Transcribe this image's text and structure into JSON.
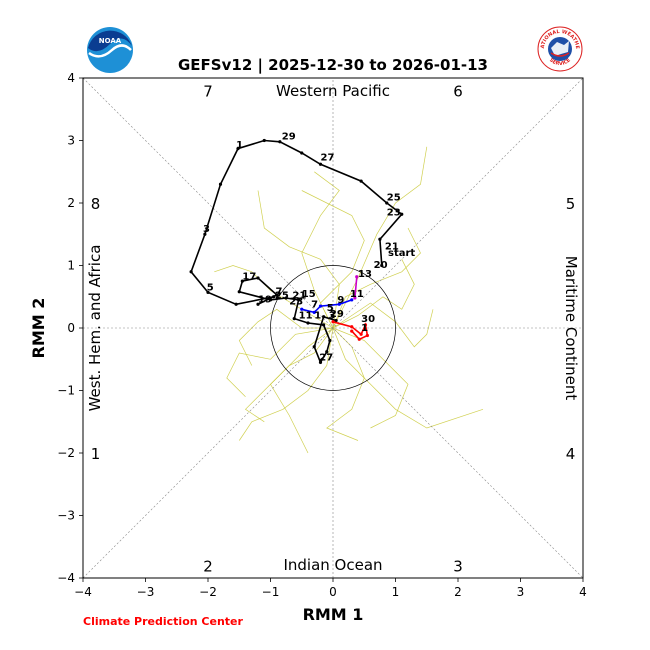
{
  "logos": {
    "noaa": "NOAA",
    "nws_top": "NATIONAL WEATHER",
    "nws_bottom": "SERVICE"
  },
  "credit": "Climate Prediction Center",
  "colors": {
    "obs_black": "#000000",
    "obs_purple": "#cc00cc",
    "obs_blue": "#0000ff",
    "obs_red": "#ff0000",
    "ensemble": "#c8c832",
    "credit_red": "#ff0000"
  },
  "chart_data": {
    "type": "line",
    "title": "GEFSv12 | 2025-12-30 to 2026-01-13",
    "xlabel": "RMM 1",
    "ylabel": "RMM 2",
    "xlim": [
      -4,
      4
    ],
    "ylim": [
      -4,
      4
    ],
    "xticks": [
      "−4",
      "−3",
      "−2",
      "−1",
      "0",
      "1",
      "2",
      "3",
      "4"
    ],
    "yticks": [
      "−4",
      "−3",
      "−2",
      "−1",
      "0",
      "1",
      "2",
      "3",
      "4"
    ],
    "phase_regions": [
      {
        "label": "Western Pacific",
        "side": "top"
      },
      {
        "label": "Indian Ocean",
        "side": "bottom"
      },
      {
        "label": "West. Hem. and Africa",
        "side": "left"
      },
      {
        "label": "Maritime Continent",
        "side": "right"
      }
    ],
    "phase_numbers": [
      {
        "label": "7",
        "x": -2.0,
        "y": 3.8
      },
      {
        "label": "6",
        "x": 2.0,
        "y": 3.8
      },
      {
        "label": "8",
        "x": -3.8,
        "y": 2.0
      },
      {
        "label": "5",
        "x": 3.8,
        "y": 2.0
      },
      {
        "label": "1",
        "x": -3.8,
        "y": -2.0
      },
      {
        "label": "4",
        "x": 3.8,
        "y": -2.0
      },
      {
        "label": "2",
        "x": -2.0,
        "y": -3.8
      },
      {
        "label": "3",
        "x": 2.0,
        "y": -3.8
      }
    ],
    "unit_circle_radius": 1,
    "start_label": {
      "text": "start",
      "x": 0.88,
      "y": 1.15
    },
    "observed_series": [
      {
        "name": "segment-a",
        "color": "#000000",
        "points": [
          [
            0.78,
            1.0
          ],
          [
            0.75,
            1.42
          ],
          [
            1.1,
            1.82
          ],
          [
            0.86,
            2.0
          ],
          [
            0.45,
            2.35
          ],
          [
            -0.2,
            2.62
          ],
          [
            -0.5,
            2.8
          ],
          [
            -0.85,
            2.98
          ],
          [
            -1.1,
            3.0
          ],
          [
            -1.52,
            2.87
          ],
          [
            -1.8,
            2.3
          ],
          [
            -2.05,
            1.5
          ],
          [
            -2.27,
            0.9
          ],
          [
            -2.0,
            0.57
          ],
          [
            -1.55,
            0.38
          ],
          [
            -0.95,
            0.5
          ],
          [
            -1.2,
            0.38
          ],
          [
            -0.9,
            0.53
          ],
          [
            -1.2,
            0.8
          ],
          [
            -1.45,
            0.75
          ],
          [
            -1.5,
            0.58
          ],
          [
            -1.0,
            0.45
          ],
          [
            -0.75,
            0.48
          ],
          [
            -0.55,
            0.45
          ],
          [
            -0.62,
            0.15
          ],
          [
            -0.4,
            0.08
          ],
          [
            -0.15,
            0.05
          ],
          [
            -0.05,
            -0.2
          ],
          [
            -0.1,
            -0.38
          ],
          [
            -0.2,
            -0.55
          ],
          [
            -0.3,
            -0.3
          ],
          [
            -0.15,
            0.18
          ],
          [
            0.05,
            0.12
          ]
        ]
      },
      {
        "name": "segment-b",
        "color": "#cc00cc",
        "points": [
          [
            0.35,
            0.48
          ],
          [
            0.38,
            0.82
          ]
        ]
      },
      {
        "name": "segment-c",
        "color": "#0000ff",
        "points": [
          [
            -0.5,
            0.3
          ],
          [
            -0.3,
            0.25
          ],
          [
            -0.2,
            0.35
          ],
          [
            0.1,
            0.38
          ],
          [
            0.3,
            0.45
          ]
        ]
      },
      {
        "name": "segment-d",
        "color": "#ff0000",
        "points": [
          [
            0.0,
            0.1
          ],
          [
            0.3,
            0.02
          ],
          [
            0.45,
            -0.1
          ],
          [
            0.52,
            0.05
          ],
          [
            0.55,
            -0.12
          ],
          [
            0.42,
            -0.18
          ],
          [
            0.3,
            -0.05
          ]
        ]
      }
    ],
    "point_labels": [
      {
        "text": "1",
        "x": -1.55,
        "y": 2.88
      },
      {
        "text": "29",
        "x": -0.82,
        "y": 3.02
      },
      {
        "text": "27",
        "x": -0.2,
        "y": 2.68
      },
      {
        "text": "25",
        "x": 0.86,
        "y": 2.04
      },
      {
        "text": "23",
        "x": 0.86,
        "y": 1.8
      },
      {
        "text": "21",
        "x": 0.83,
        "y": 1.26
      },
      {
        "text": "20",
        "x": 0.65,
        "y": 0.96
      },
      {
        "text": "13",
        "x": 0.4,
        "y": 0.82
      },
      {
        "text": "3",
        "x": -2.08,
        "y": 1.54
      },
      {
        "text": "5",
        "x": -2.02,
        "y": 0.6
      },
      {
        "text": "17",
        "x": -1.45,
        "y": 0.78
      },
      {
        "text": "19",
        "x": -1.2,
        "y": 0.41
      },
      {
        "text": "7",
        "x": -0.92,
        "y": 0.54
      },
      {
        "text": "25",
        "x": -0.93,
        "y": 0.47
      },
      {
        "text": "21",
        "x": -0.65,
        "y": 0.47
      },
      {
        "text": "15",
        "x": -0.5,
        "y": 0.5
      },
      {
        "text": "23",
        "x": -0.7,
        "y": 0.38
      },
      {
        "text": "7",
        "x": -0.35,
        "y": 0.33
      },
      {
        "text": "9",
        "x": 0.07,
        "y": 0.4
      },
      {
        "text": "11",
        "x": 0.27,
        "y": 0.5
      },
      {
        "text": "5",
        "x": -0.1,
        "y": 0.27
      },
      {
        "text": "11",
        "x": -0.55,
        "y": 0.15
      },
      {
        "text": "1",
        "x": -0.3,
        "y": 0.15
      },
      {
        "text": "3",
        "x": -0.07,
        "y": 0.15
      },
      {
        "text": "29",
        "x": -0.05,
        "y": 0.18
      },
      {
        "text": "30",
        "x": 0.45,
        "y": 0.1
      },
      {
        "text": "1",
        "x": 0.45,
        "y": -0.05
      },
      {
        "text": "27",
        "x": -0.22,
        "y": -0.52
      }
    ],
    "ensemble_members": [
      [
        [
          0.0,
          0.0
        ],
        [
          -0.3,
          0.6
        ],
        [
          -0.5,
          1.2
        ],
        [
          -0.2,
          1.8
        ],
        [
          0.1,
          2.2
        ],
        [
          -0.3,
          2.5
        ]
      ],
      [
        [
          0.0,
          0.0
        ],
        [
          0.4,
          0.8
        ],
        [
          0.7,
          1.5
        ],
        [
          1.0,
          2.0
        ],
        [
          1.4,
          2.3
        ],
        [
          1.5,
          2.9
        ]
      ],
      [
        [
          0.0,
          0.0
        ],
        [
          0.6,
          0.4
        ],
        [
          1.0,
          0.1
        ],
        [
          1.3,
          -0.3
        ],
        [
          1.5,
          -0.1
        ],
        [
          1.6,
          0.3
        ]
      ],
      [
        [
          0.0,
          0.0
        ],
        [
          -0.4,
          -0.3
        ],
        [
          -0.8,
          -0.7
        ],
        [
          -1.2,
          -1.1
        ],
        [
          -1.4,
          -1.3
        ],
        [
          -1.1,
          -1.5
        ]
      ],
      [
        [
          0.0,
          0.0
        ],
        [
          0.2,
          -0.5
        ],
        [
          0.6,
          -0.9
        ],
        [
          1.0,
          -1.3
        ],
        [
          1.5,
          -1.6
        ],
        [
          2.4,
          -1.3
        ]
      ],
      [
        [
          0.0,
          0.0
        ],
        [
          -0.6,
          -0.1
        ],
        [
          -1.0,
          -0.5
        ],
        [
          -1.5,
          -0.4
        ],
        [
          -1.7,
          -0.8
        ],
        [
          -1.4,
          -1.1
        ]
      ],
      [
        [
          0.0,
          0.0
        ],
        [
          -0.2,
          0.4
        ],
        [
          0.3,
          0.9
        ],
        [
          0.5,
          1.4
        ],
        [
          0.3,
          1.8
        ],
        [
          -0.5,
          2.2
        ]
      ],
      [
        [
          0.0,
          0.0
        ],
        [
          0.5,
          -0.2
        ],
        [
          0.9,
          -0.6
        ],
        [
          1.2,
          -0.9
        ],
        [
          1.0,
          -1.4
        ],
        [
          0.6,
          -1.6
        ]
      ],
      [
        [
          0.0,
          0.0
        ],
        [
          -0.5,
          0.3
        ],
        [
          -1.0,
          0.6
        ],
        [
          -1.3,
          0.9
        ],
        [
          -1.6,
          1.0
        ],
        [
          -1.9,
          0.9
        ]
      ],
      [
        [
          0.0,
          0.0
        ],
        [
          0.2,
          0.5
        ],
        [
          0.6,
          0.7
        ],
        [
          1.1,
          0.9
        ],
        [
          1.4,
          1.2
        ],
        [
          1.2,
          1.6
        ]
      ],
      [
        [
          0.0,
          0.0
        ],
        [
          -0.3,
          -0.4
        ],
        [
          -0.7,
          -0.6
        ],
        [
          -1.0,
          -0.9
        ],
        [
          -0.7,
          -1.4
        ],
        [
          -0.4,
          -2.0
        ]
      ],
      [
        [
          0.0,
          0.0
        ],
        [
          0.3,
          -0.3
        ],
        [
          0.5,
          -0.8
        ],
        [
          0.3,
          -1.3
        ],
        [
          -0.1,
          -1.6
        ],
        [
          0.4,
          -1.8
        ]
      ],
      [
        [
          0.0,
          0.0
        ],
        [
          -0.5,
          0.0
        ],
        [
          -0.9,
          0.3
        ],
        [
          -1.2,
          0.1
        ],
        [
          -1.5,
          -0.2
        ],
        [
          -1.3,
          -0.6
        ]
      ],
      [
        [
          0.0,
          0.0
        ],
        [
          0.4,
          0.2
        ],
        [
          0.8,
          0.5
        ],
        [
          1.1,
          0.3
        ],
        [
          1.3,
          0.7
        ],
        [
          1.1,
          1.1
        ]
      ],
      [
        [
          0.0,
          0.0
        ],
        [
          -0.1,
          -0.6
        ],
        [
          -0.4,
          -1.0
        ],
        [
          -0.8,
          -1.3
        ],
        [
          -1.3,
          -1.5
        ],
        [
          -1.5,
          -1.8
        ]
      ],
      [
        [
          0.0,
          0.0
        ],
        [
          0.1,
          0.7
        ],
        [
          -0.2,
          1.1
        ],
        [
          -0.7,
          1.3
        ],
        [
          -1.1,
          1.6
        ],
        [
          -1.2,
          2.2
        ]
      ]
    ]
  }
}
